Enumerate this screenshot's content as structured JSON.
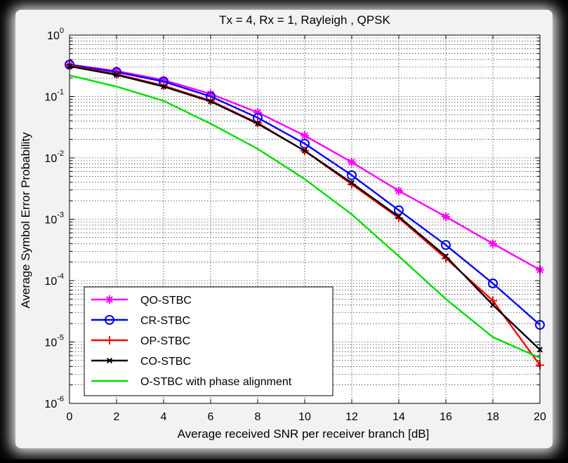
{
  "chart_data": {
    "type": "line",
    "title": "Tx = 4, Rx = 1,  Rayleigh , QPSK",
    "xlabel": "Average received SNR per receiver branch [dB]",
    "ylabel": "Average Symbol Error Probability",
    "xlim": [
      0,
      20
    ],
    "ylim": [
      1e-06,
      1
    ],
    "yscale": "log",
    "grid": true,
    "legend_position": "bottom-left",
    "x_ticks": [
      "0",
      "2",
      "4",
      "6",
      "8",
      "10",
      "12",
      "14",
      "16",
      "18",
      "20"
    ],
    "y_ticks": [
      {
        "base": "10",
        "exp": "0",
        "value": 1
      },
      {
        "base": "10",
        "exp": "-1",
        "value": 0.1
      },
      {
        "base": "10",
        "exp": "-2",
        "value": 0.01
      },
      {
        "base": "10",
        "exp": "-3",
        "value": 0.001
      },
      {
        "base": "10",
        "exp": "-4",
        "value": 0.0001
      },
      {
        "base": "10",
        "exp": "-5",
        "value": 1e-05
      },
      {
        "base": "10",
        "exp": "-6",
        "value": 1e-06
      }
    ],
    "x": [
      0,
      2,
      4,
      6,
      8,
      10,
      12,
      14,
      16,
      18,
      20
    ],
    "series": [
      {
        "name": "QO-STBC",
        "color": "#ff00ff",
        "marker": "star",
        "values": [
          0.33,
          0.26,
          0.185,
          0.11,
          0.055,
          0.023,
          0.0085,
          0.0029,
          0.0011,
          0.0004,
          0.00015
        ]
      },
      {
        "name": "CR-STBC",
        "color": "#0000ff",
        "marker": "circle",
        "values": [
          0.33,
          0.25,
          0.175,
          0.1,
          0.045,
          0.017,
          0.0052,
          0.0014,
          0.00038,
          9e-05,
          1.9e-05
        ]
      },
      {
        "name": "OP-STBC",
        "color": "#ff0000",
        "marker": "plus",
        "values": [
          0.32,
          0.23,
          0.15,
          0.085,
          0.037,
          0.013,
          0.0037,
          0.00105,
          0.00023,
          4.7e-05,
          4.2e-06
        ]
      },
      {
        "name": "CO-STBC",
        "color": "#000000",
        "marker": "x",
        "values": [
          0.31,
          0.225,
          0.145,
          0.083,
          0.036,
          0.013,
          0.0039,
          0.0011,
          0.00025,
          4e-05,
          7.5e-06
        ]
      },
      {
        "name": "O-STBC with phase alignment",
        "color": "#00dd00",
        "marker": "none",
        "values": [
          0.22,
          0.145,
          0.085,
          0.036,
          0.014,
          0.0045,
          0.0012,
          0.00025,
          5e-05,
          1.2e-05,
          5.5e-06
        ]
      }
    ]
  }
}
